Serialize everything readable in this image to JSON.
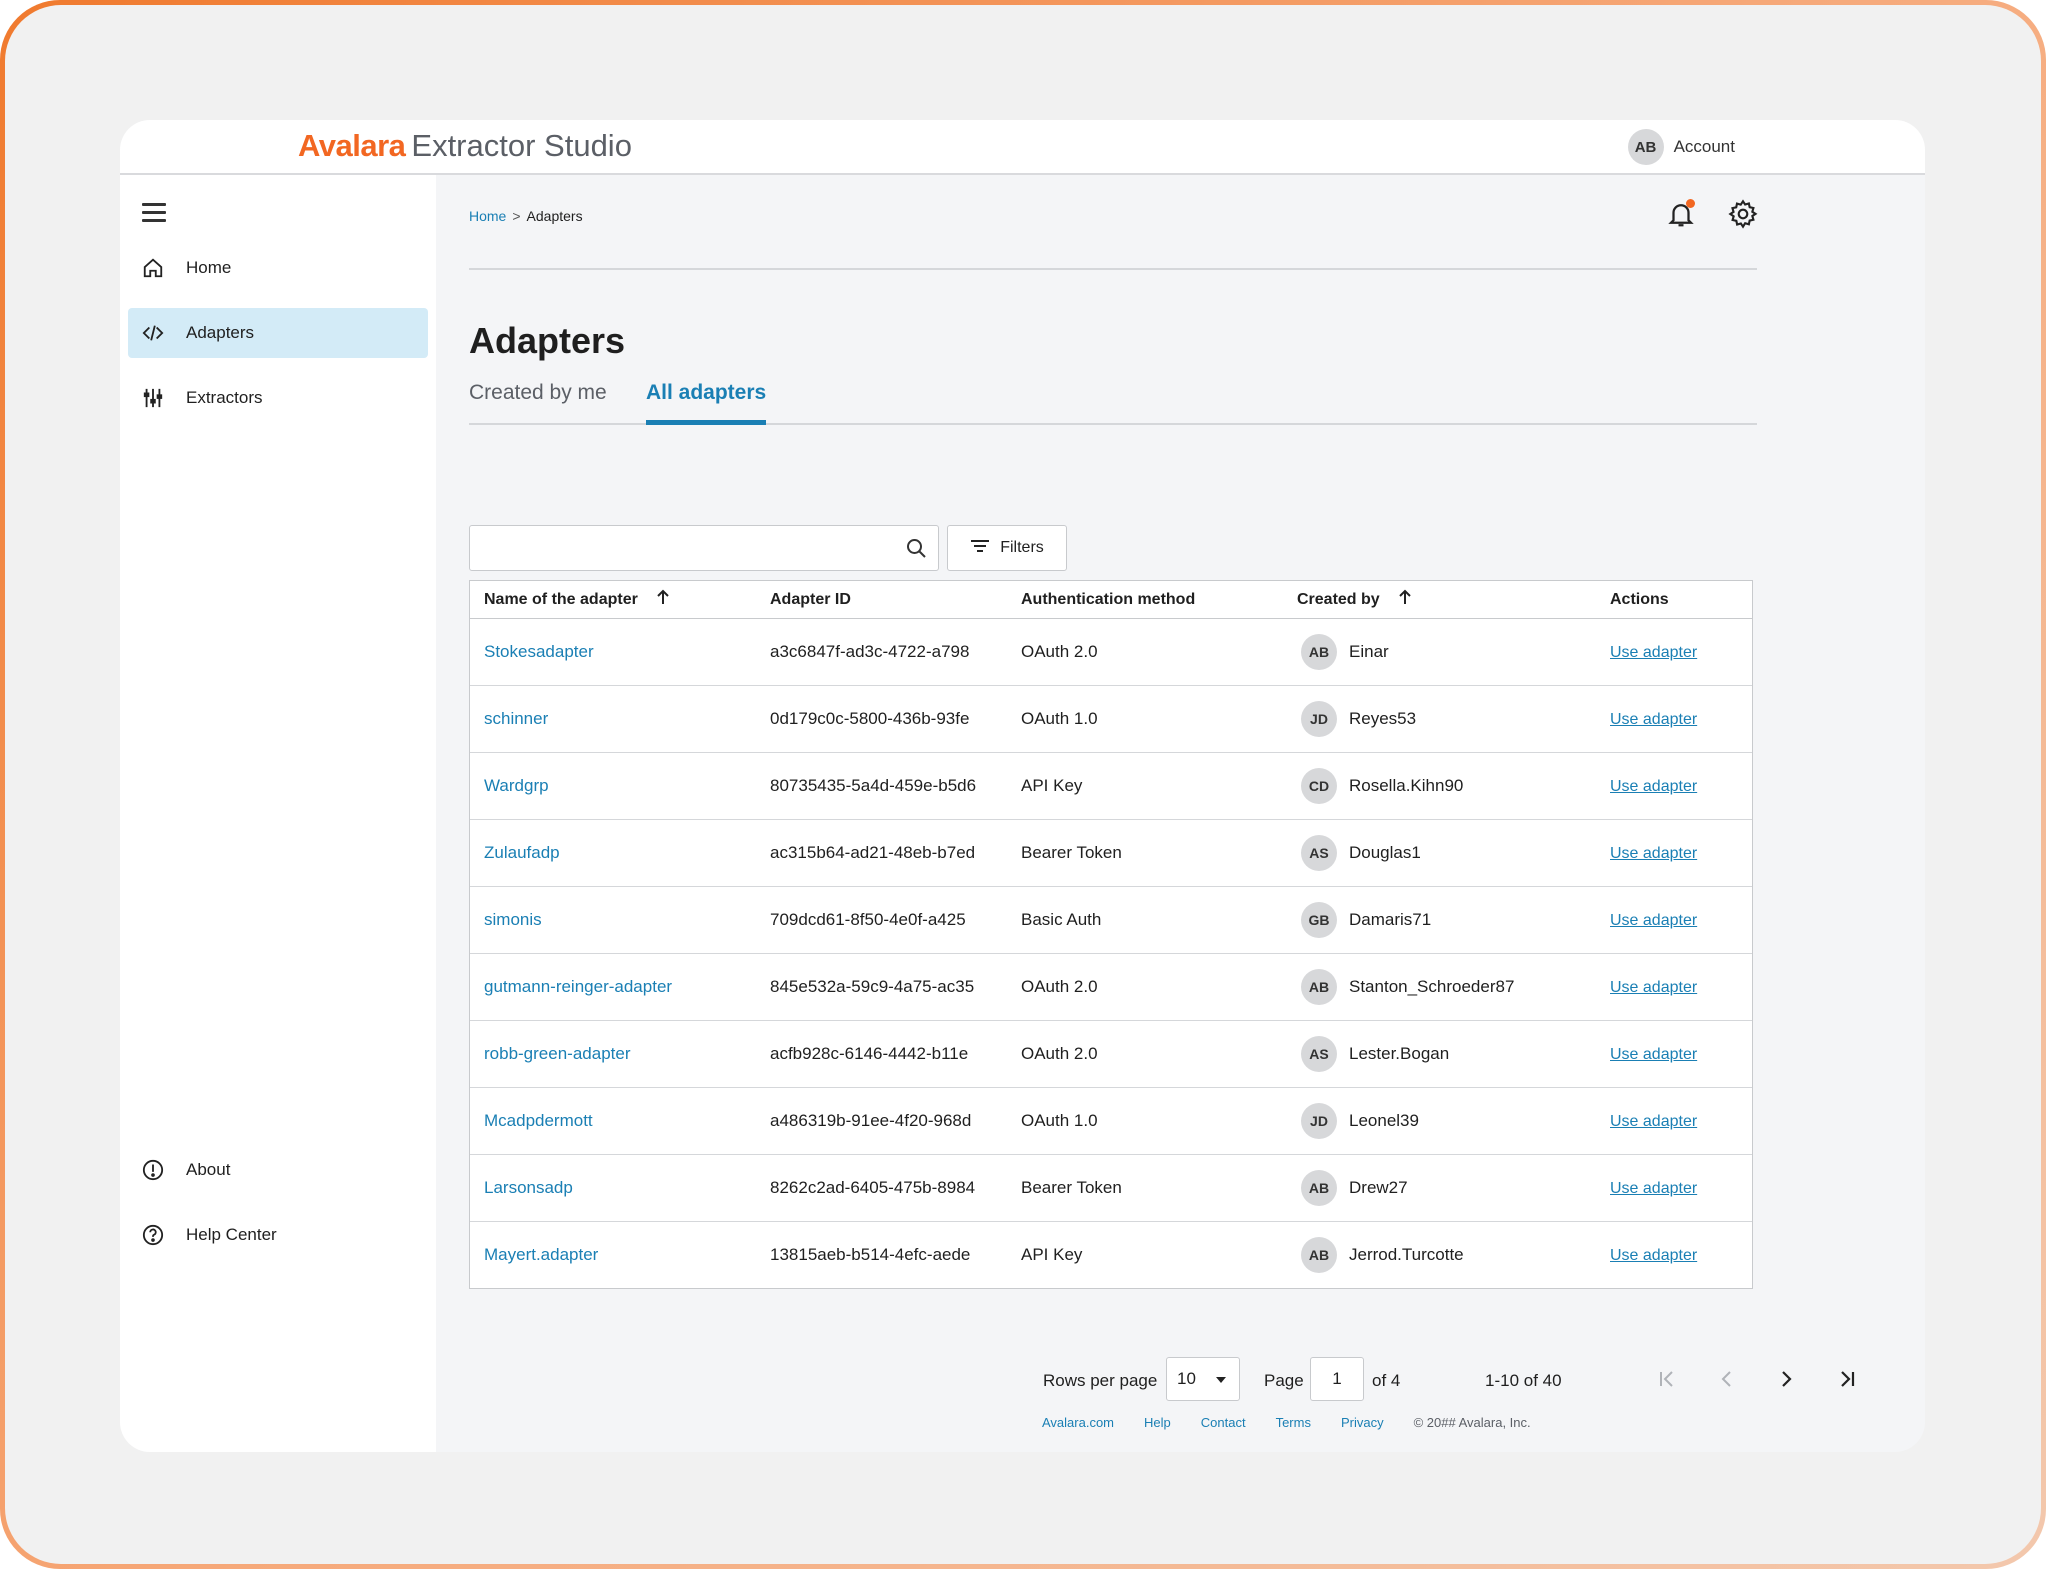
{
  "brand": {
    "logo": "Avalara",
    "product": "Extractor Studio"
  },
  "account": {
    "initials": "AB",
    "label": "Account"
  },
  "sidebar": {
    "items": [
      {
        "label": "Home",
        "icon": "home-icon"
      },
      {
        "label": "Adapters",
        "icon": "code-icon",
        "active": true
      },
      {
        "label": "Extractors",
        "icon": "sliders-icon"
      }
    ],
    "bottom_items": [
      {
        "label": "About",
        "icon": "info-icon"
      },
      {
        "label": "Help Center",
        "icon": "help-icon"
      }
    ]
  },
  "breadcrumb": {
    "home": "Home",
    "separator": ">",
    "current": "Adapters"
  },
  "page_title": "Adapters",
  "tabs": [
    {
      "label": "Created by me",
      "active": false
    },
    {
      "label": "All adapters",
      "active": true
    }
  ],
  "search": {
    "placeholder": "",
    "value": ""
  },
  "filters_label": "Filters",
  "table": {
    "headers": [
      "Name of the adapter",
      "Adapter ID",
      "Authentication method",
      "Created by",
      "Actions"
    ],
    "rows": [
      {
        "name": "Stokesadapter",
        "id": "a3c6847f-ad3c-4722-a798",
        "auth": "OAuth 2.0",
        "initials": "AB",
        "creator": "Einar",
        "action": "Use adapter"
      },
      {
        "name": "schinner",
        "id": "0d179c0c-5800-436b-93fe",
        "auth": "OAuth 1.0",
        "initials": "JD",
        "creator": "Reyes53",
        "action": "Use adapter"
      },
      {
        "name": "Wardgrp",
        "id": "80735435-5a4d-459e-b5d6",
        "auth": "API Key",
        "initials": "CD",
        "creator": "Rosella.Kihn90",
        "action": "Use adapter"
      },
      {
        "name": "Zulaufadp",
        "id": "ac315b64-ad21-48eb-b7ed",
        "auth": "Bearer Token",
        "initials": "AS",
        "creator": "Douglas1",
        "action": "Use adapter"
      },
      {
        "name": "simonis",
        "id": "709dcd61-8f50-4e0f-a425",
        "auth": "Basic Auth",
        "initials": "GB",
        "creator": "Damaris71",
        "action": "Use adapter"
      },
      {
        "name": "gutmann-reinger-adapter",
        "id": "845e532a-59c9-4a75-ac35",
        "auth": "OAuth 2.0",
        "initials": "AB",
        "creator": "Stanton_Schroeder87",
        "action": "Use adapter"
      },
      {
        "name": "robb-green-adapter",
        "id": "acfb928c-6146-4442-b11e",
        "auth": "OAuth 2.0",
        "initials": "AS",
        "creator": "Lester.Bogan",
        "action": "Use adapter"
      },
      {
        "name": "Mcadpdermott",
        "id": "a486319b-91ee-4f20-968d",
        "auth": "OAuth 1.0",
        "initials": "JD",
        "creator": "Leonel39",
        "action": "Use adapter"
      },
      {
        "name": "Larsonsadp",
        "id": "8262c2ad-6405-475b-8984",
        "auth": "Bearer Token",
        "initials": "AB",
        "creator": "Drew27",
        "action": "Use adapter"
      },
      {
        "name": "Mayert.adapter",
        "id": "13815aeb-b514-4efc-aede",
        "auth": "API Key",
        "initials": "AB",
        "creator": "Jerrod.Turcotte",
        "action": "Use adapter"
      }
    ]
  },
  "pagination": {
    "rows_per_page_label": "Rows per page",
    "rows_per_page": "10",
    "page_label": "Page",
    "page": "1",
    "of_pages": "of 4",
    "range": "1-10 of 40"
  },
  "footer": {
    "links": [
      "Avalara.com",
      "Help",
      "Contact",
      "Terms",
      "Privacy"
    ],
    "copyright": "© 20## Avalara, Inc."
  },
  "colors": {
    "accent": "#1a7fb4",
    "brand": "#f26722",
    "active_nav_bg": "#d3ebf7"
  }
}
